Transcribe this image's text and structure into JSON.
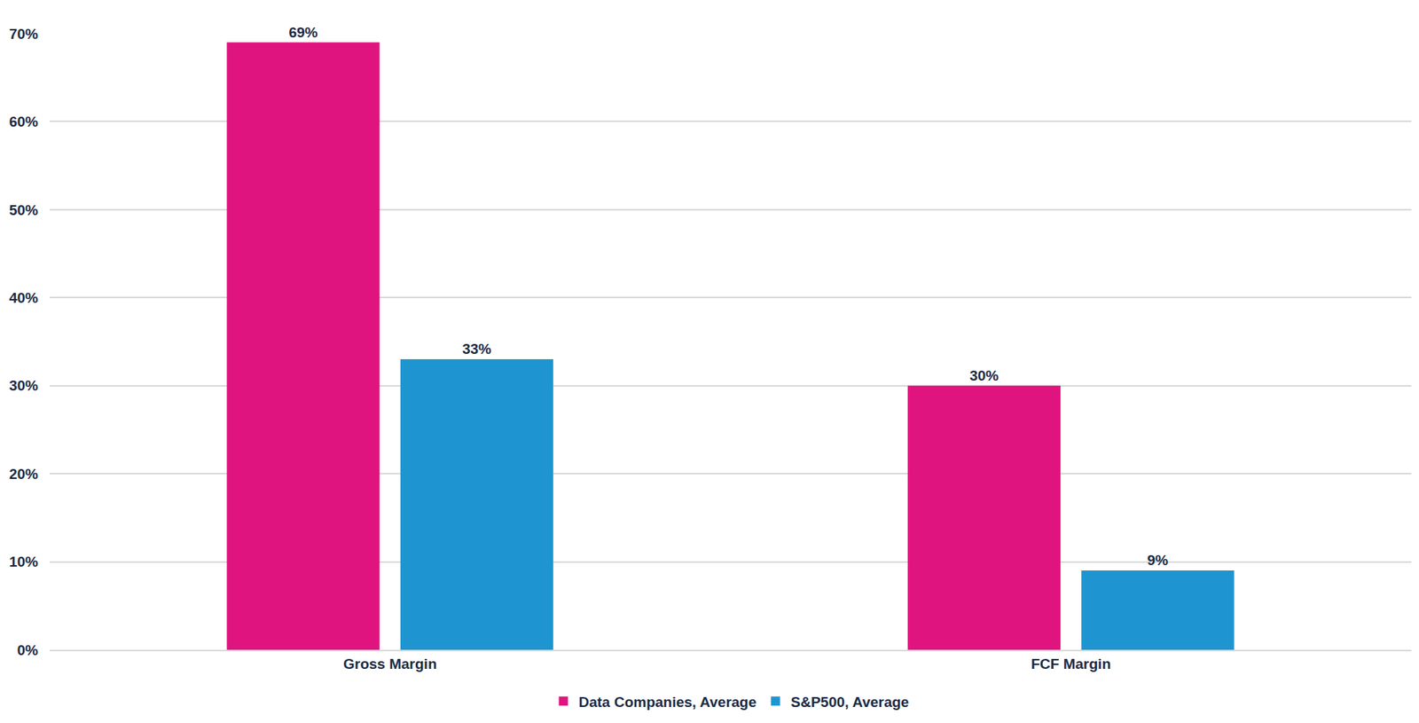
{
  "chart_data": {
    "type": "bar",
    "categories": [
      "Gross Margin",
      "FCF Margin"
    ],
    "series": [
      {
        "name": "Data Companies, Average",
        "color": "#e0147f",
        "values": [
          69,
          30
        ],
        "value_labels": [
          "69%",
          "30%"
        ]
      },
      {
        "name": "S&P500, Average",
        "color": "#1e95d0",
        "values": [
          33,
          9
        ],
        "value_labels": [
          "33%",
          "9%"
        ]
      }
    ],
    "ylim": [
      0,
      70
    ],
    "yticks": [
      {
        "value": 0,
        "label": "0%"
      },
      {
        "value": 10,
        "label": "10%"
      },
      {
        "value": 20,
        "label": "20%"
      },
      {
        "value": 30,
        "label": "30%"
      },
      {
        "value": 40,
        "label": "40%"
      },
      {
        "value": 50,
        "label": "50%"
      },
      {
        "value": 60,
        "label": "60%"
      },
      {
        "value": 70,
        "label": "70%"
      }
    ],
    "grid": true,
    "data_labels": true,
    "legend": "bottom"
  }
}
